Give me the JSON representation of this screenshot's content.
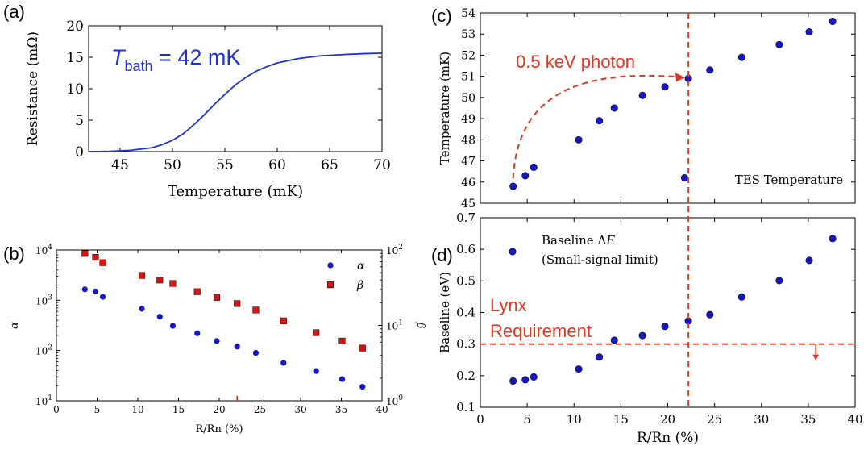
{
  "chart_data": [
    {
      "panel": "(a)",
      "type": "line",
      "xlabel": "Temperature (mK)",
      "ylabel": "Resistance (mΩ)",
      "xlim": [
        42,
        70
      ],
      "ylim": [
        0,
        20
      ],
      "xticks": [
        45,
        50,
        55,
        60,
        65,
        70
      ],
      "yticks": [
        0,
        5,
        10,
        15,
        20
      ],
      "annotation": {
        "main": "T",
        "sub": "bath",
        "rest": " = 42 mK",
        "color": "#1f2fe0"
      },
      "series": [
        {
          "color": "#1f2fe0",
          "x": [
            42,
            44,
            46,
            48,
            49,
            50,
            51,
            52,
            53,
            54,
            55,
            56,
            57,
            58,
            59,
            60,
            62,
            64,
            66,
            68,
            70
          ],
          "y": [
            0.0,
            0.05,
            0.2,
            0.6,
            1.1,
            1.8,
            2.8,
            4.2,
            5.8,
            7.5,
            9.1,
            10.6,
            11.8,
            12.8,
            13.5,
            14.1,
            14.8,
            15.2,
            15.4,
            15.55,
            15.65
          ]
        }
      ]
    },
    {
      "panel": "(b)",
      "type": "scatter",
      "xlabel": "R/Rn (%)",
      "ylabel_left": "α",
      "ylabel_right": "β",
      "xlim": [
        0,
        40
      ],
      "ylim_left": [
        10,
        10000
      ],
      "ylim_right": [
        1,
        100
      ],
      "yscale": "log",
      "xticks": [
        0,
        5,
        10,
        15,
        20,
        25,
        30,
        35,
        40
      ],
      "yticks_left": [
        {
          "base": "10",
          "exp": "1"
        },
        {
          "base": "10",
          "exp": "2"
        },
        {
          "base": "10",
          "exp": "3"
        },
        {
          "base": "10",
          "exp": "4"
        }
      ],
      "yticks_right": [
        {
          "base": "10",
          "exp": "0"
        },
        {
          "base": "10",
          "exp": "1"
        },
        {
          "base": "10",
          "exp": "2"
        }
      ],
      "legend_position": "top-right",
      "series": [
        {
          "name": "α",
          "marker": "circle",
          "color": "#1414d2",
          "axis": "left",
          "x": [
            3.5,
            4.8,
            5.7,
            10.5,
            12.7,
            14.3,
            17.3,
            19.7,
            22.2,
            24.5,
            27.9,
            31.9,
            35.1,
            37.6
          ],
          "y": [
            1650,
            1500,
            1170,
            680,
            470,
            310,
            220,
            155,
            120,
            90,
            57,
            39,
            27,
            19
          ]
        },
        {
          "name": "β",
          "marker": "square",
          "color": "#e01010",
          "axis": "right",
          "x": [
            3.5,
            4.8,
            5.7,
            10.5,
            12.7,
            14.3,
            17.3,
            19.7,
            22.2,
            24.5,
            27.9,
            31.9,
            35.1,
            37.6
          ],
          "y": [
            90,
            80,
            68,
            46,
            40,
            36,
            28,
            23.5,
            19.5,
            16,
            11.5,
            8,
            6.2,
            5
          ]
        }
      ]
    },
    {
      "panel": "(c)",
      "type": "scatter",
      "xlabel": "",
      "ylabel": "Temperature (mK)",
      "xlim": [
        0,
        40
      ],
      "ylim": [
        45,
        54
      ],
      "yticks": [
        45,
        46,
        47,
        48,
        49,
        50,
        51,
        52,
        53,
        54
      ],
      "corner_label": "TES Temperature",
      "photon_label": "0.5 keV photon",
      "vline_x": 22.2,
      "series": [
        {
          "color": "#1414d2",
          "x": [
            3.5,
            4.8,
            5.7,
            10.5,
            12.7,
            14.3,
            17.3,
            19.7,
            21.8,
            22.2,
            24.5,
            27.9,
            31.9,
            35.1,
            37.6
          ],
          "y": [
            45.8,
            46.3,
            46.7,
            48.0,
            48.9,
            49.5,
            50.1,
            50.5,
            46.2,
            50.9,
            51.3,
            51.9,
            52.5,
            53.1,
            53.6
          ]
        }
      ]
    },
    {
      "panel": "(d)",
      "type": "scatter",
      "xlabel": "R/Rn (%)",
      "ylabel": "Baseline (eV)",
      "xlim": [
        0,
        40
      ],
      "ylim": [
        0.1,
        0.7
      ],
      "xticks": [
        0,
        5,
        10,
        15,
        20,
        25,
        30,
        35,
        40
      ],
      "yticks": [
        "0.1",
        "0.2",
        "0.3",
        "0.4",
        "0.5",
        "0.6",
        "0.7"
      ],
      "legend_position": "top-left",
      "legend": {
        "name_prefix": "Baseline Δ",
        "name_var": "E",
        "note": "(Small-signal limit)"
      },
      "requirement_label": [
        "Lynx",
        "Requirement"
      ],
      "hline_y": 0.3,
      "vline_x": 22.2,
      "series": [
        {
          "color": "#1414d2",
          "x": [
            3.5,
            4.8,
            5.7,
            10.5,
            12.7,
            14.3,
            17.3,
            19.7,
            22.2,
            24.5,
            27.9,
            31.9,
            35.1,
            37.6
          ],
          "y": [
            0.183,
            0.187,
            0.196,
            0.221,
            0.259,
            0.312,
            0.327,
            0.356,
            0.373,
            0.393,
            0.449,
            0.501,
            0.565,
            0.634
          ]
        }
      ]
    }
  ]
}
